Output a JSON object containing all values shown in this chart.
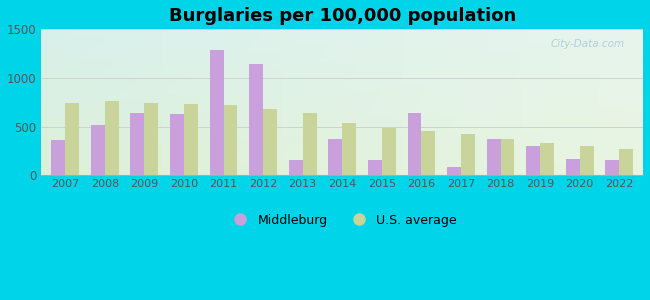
{
  "title": "Burglaries per 100,000 population",
  "years": [
    2007,
    2008,
    2009,
    2010,
    2011,
    2012,
    2013,
    2014,
    2015,
    2016,
    2017,
    2018,
    2019,
    2020,
    2022
  ],
  "middleburg": [
    360,
    520,
    640,
    630,
    1290,
    1140,
    160,
    370,
    160,
    640,
    80,
    370,
    300,
    170,
    160
  ],
  "us_average": [
    740,
    760,
    740,
    730,
    720,
    680,
    640,
    540,
    490,
    460,
    420,
    370,
    330,
    300,
    270
  ],
  "middleburg_color": "#c9a0dc",
  "us_average_color": "#c8d49a",
  "bar_width": 0.35,
  "ylim": [
    0,
    1500
  ],
  "yticks": [
    0,
    500,
    1000,
    1500
  ],
  "bg_topleft": "#d8f0ec",
  "bg_topright": "#e8f5ee",
  "bg_bottomleft": "#ddf0d8",
  "bg_bottomright": "#e8f5e0",
  "outer_bg": "#00d4e8",
  "legend_middleburg": "Middleburg",
  "legend_us": "U.S. average",
  "title_fontsize": 13,
  "grid_color": "#cccccc",
  "watermark_color": "#a8c8d8",
  "tick_color": "#555555",
  "spine_bottom_color": "#aaaaaa"
}
